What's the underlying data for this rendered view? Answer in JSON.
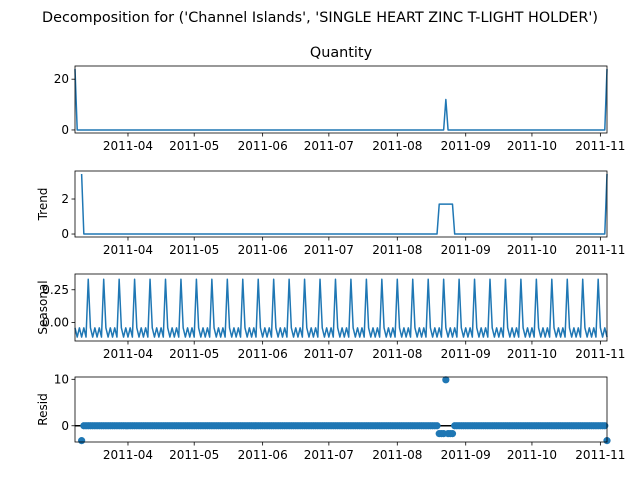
{
  "figure": {
    "suptitle": "Decomposition for ('Channel Islands', 'SINGLE HEART ZINC T-LIGHT HOLDER')",
    "line_color": "#1f77b4"
  },
  "chart_data": [
    {
      "type": "line",
      "title": "Quantity",
      "ylabel": "",
      "ylim": [
        -1.2,
        25.2
      ],
      "yticks": [
        0,
        20
      ],
      "xlim": [
        "2011-03-08",
        "2011-11-04"
      ],
      "xticks": [
        "2011-04-01",
        "2011-05-01",
        "2011-06-01",
        "2011-07-01",
        "2011-08-01",
        "2011-09-01",
        "2011-10-01",
        "2011-11-01"
      ],
      "xticklabels": [
        "2011-04",
        "2011-05",
        "2011-06",
        "2011-07",
        "2011-08",
        "2011-09",
        "2011-10",
        "2011-11"
      ],
      "points": [
        [
          "2011-03-08",
          24
        ],
        [
          "2011-03-09",
          0
        ],
        [
          "2011-08-22",
          0
        ],
        [
          "2011-08-23",
          12
        ],
        [
          "2011-08-24",
          0
        ],
        [
          "2011-11-03",
          0
        ],
        [
          "2011-11-04",
          24
        ]
      ]
    },
    {
      "type": "line",
      "title": "",
      "ylabel": "Trend",
      "ylim": [
        -0.17,
        3.6
      ],
      "yticks": [
        0,
        2
      ],
      "xlim": [
        "2011-03-08",
        "2011-11-04"
      ],
      "xticks": [
        "2011-04-01",
        "2011-05-01",
        "2011-06-01",
        "2011-07-01",
        "2011-08-01",
        "2011-09-01",
        "2011-10-01",
        "2011-11-01"
      ],
      "xticklabels": [
        "2011-04",
        "2011-05",
        "2011-06",
        "2011-07",
        "2011-08",
        "2011-09",
        "2011-10",
        "2011-11"
      ],
      "points": [
        [
          "2011-03-11",
          3.43
        ],
        [
          "2011-03-12",
          0
        ],
        [
          "2011-08-19",
          0
        ],
        [
          "2011-08-20",
          1.71
        ],
        [
          "2011-08-26",
          1.71
        ],
        [
          "2011-08-27",
          0
        ],
        [
          "2011-11-03",
          0
        ],
        [
          "2011-11-04",
          3.43
        ]
      ]
    },
    {
      "type": "line",
      "title": "",
      "ylabel": "Seasonal",
      "ylim": [
        -0.14,
        0.37
      ],
      "yticks": [
        0.0,
        0.25
      ],
      "yticklabels": [
        "0.00",
        "0.25"
      ],
      "xlim": [
        "2011-03-08",
        "2011-11-04"
      ],
      "xticks": [
        "2011-04-01",
        "2011-05-01",
        "2011-06-01",
        "2011-07-01",
        "2011-08-01",
        "2011-09-01",
        "2011-10-01",
        "2011-11-01"
      ],
      "xticklabels": [
        "2011-04",
        "2011-05",
        "2011-06",
        "2011-07",
        "2011-08",
        "2011-09",
        "2011-10",
        "2011-11"
      ],
      "period_days": 7,
      "pattern_start": "2011-03-08",
      "weekly_pattern": [
        -0.04,
        -0.11,
        -0.04,
        -0.11,
        -0.04,
        -0.11,
        0.33
      ]
    },
    {
      "type": "scatter",
      "title": "",
      "ylabel": "Resid",
      "ylim": [
        -3.5,
        10.5
      ],
      "yticks": [
        0,
        10
      ],
      "zero_line": true,
      "xlim": [
        "2011-03-08",
        "2011-11-04"
      ],
      "xticks": [
        "2011-04-01",
        "2011-05-01",
        "2011-06-01",
        "2011-07-01",
        "2011-08-01",
        "2011-09-01",
        "2011-10-01",
        "2011-11-01"
      ],
      "xticklabels": [
        "2011-04",
        "2011-05",
        "2011-06",
        "2011-07",
        "2011-08",
        "2011-09",
        "2011-10",
        "2011-11"
      ],
      "range": [
        "2011-03-11",
        "2011-11-04"
      ],
      "default_value": 0,
      "overrides": {
        "2011-03-11": -3.2,
        "2011-08-20": -1.7,
        "2011-08-21": -1.7,
        "2011-08-22": -1.7,
        "2011-08-23": 9.9,
        "2011-08-24": -1.7,
        "2011-08-25": -1.7,
        "2011-08-26": -1.7,
        "2011-11-04": -3.2
      }
    }
  ]
}
